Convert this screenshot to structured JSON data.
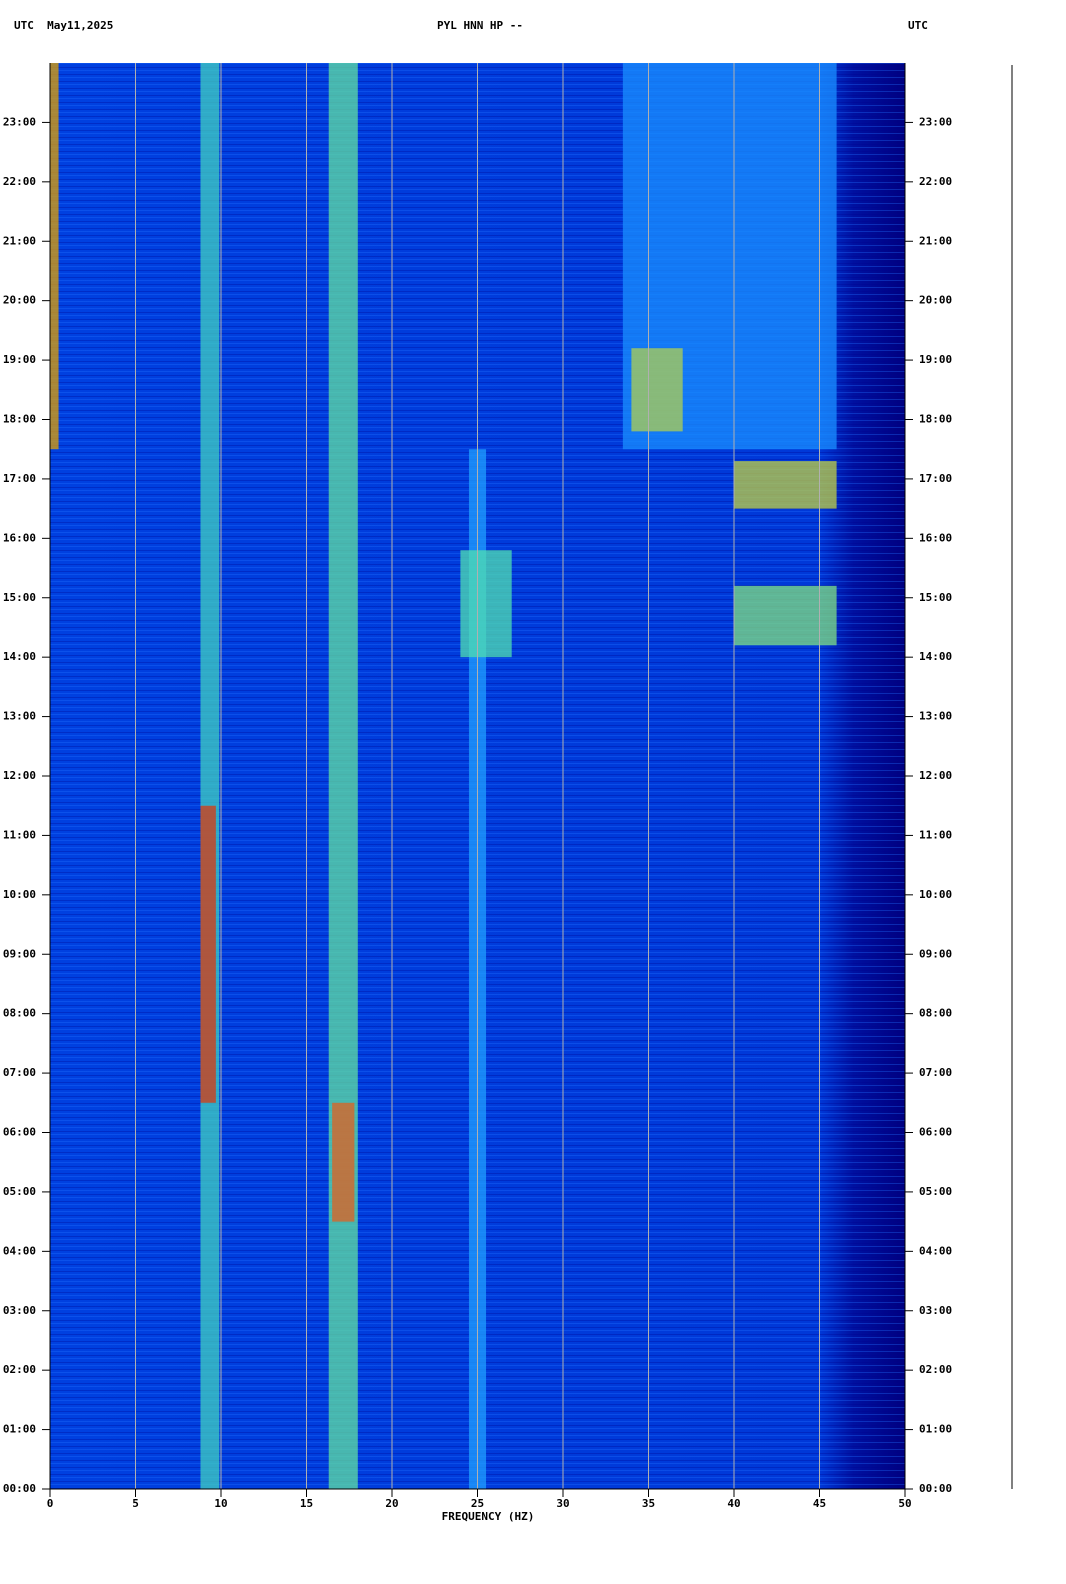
{
  "chart_data": {
    "type": "spectrogram",
    "title_left": "UTC  May11,2025",
    "title": "PYL HNN HP --",
    "title_right": "UTC",
    "xlabel": "FREQUENCY (HZ)",
    "xlim": [
      0,
      50
    ],
    "xticks": [
      0,
      5,
      10,
      15,
      20,
      25,
      30,
      35,
      40,
      45,
      50
    ],
    "ylim": [
      0,
      24
    ],
    "yticks": [
      {
        "value": 0,
        "label": "00:00"
      },
      {
        "value": 1,
        "label": "01:00"
      },
      {
        "value": 2,
        "label": "02:00"
      },
      {
        "value": 3,
        "label": "03:00"
      },
      {
        "value": 4,
        "label": "04:00"
      },
      {
        "value": 5,
        "label": "05:00"
      },
      {
        "value": 6,
        "label": "06:00"
      },
      {
        "value": 7,
        "label": "07:00"
      },
      {
        "value": 8,
        "label": "08:00"
      },
      {
        "value": 9,
        "label": "09:00"
      },
      {
        "value": 10,
        "label": "10:00"
      },
      {
        "value": 11,
        "label": "11:00"
      },
      {
        "value": 12,
        "label": "12:00"
      },
      {
        "value": 13,
        "label": "13:00"
      },
      {
        "value": 14,
        "label": "14:00"
      },
      {
        "value": 15,
        "label": "15:00"
      },
      {
        "value": 16,
        "label": "16:00"
      },
      {
        "value": 17,
        "label": "17:00"
      },
      {
        "value": 18,
        "label": "18:00"
      },
      {
        "value": 19,
        "label": "19:00"
      },
      {
        "value": 20,
        "label": "20:00"
      },
      {
        "value": 21,
        "label": "21:00"
      },
      {
        "value": 22,
        "label": "22:00"
      },
      {
        "value": 23,
        "label": "23:00"
      }
    ],
    "grid": true,
    "bands": [
      {
        "x": [
          33.5,
          46
        ],
        "y": [
          17.5,
          24
        ],
        "color": "#1a8fff"
      },
      {
        "x": [
          0,
          0.5
        ],
        "y": [
          17.5,
          24
        ],
        "color": "#e0a000"
      },
      {
        "x": [
          24.5,
          25.5
        ],
        "y": [
          0,
          17.5
        ],
        "color": "#20a0ff"
      },
      {
        "x": [
          8.8,
          9.9
        ],
        "y": [
          0,
          24
        ],
        "color": "#40d0c0"
      },
      {
        "x": [
          8.8,
          9.7
        ],
        "y": [
          6.5,
          11.5
        ],
        "color": "#d83a10"
      },
      {
        "x": [
          16.3,
          18
        ],
        "y": [
          0,
          24
        ],
        "color": "#60e0a0"
      },
      {
        "x": [
          16.5,
          17.8
        ],
        "y": [
          4.5,
          6.5
        ],
        "color": "#e06020"
      },
      {
        "x": [
          24,
          27
        ],
        "y": [
          14,
          15.8
        ],
        "color": "#50e0b0"
      },
      {
        "x": [
          40,
          46
        ],
        "y": [
          14.2,
          15.2
        ],
        "color": "#80e080"
      },
      {
        "x": [
          40,
          46
        ],
        "y": [
          16.5,
          17.3
        ],
        "color": "#c0d040"
      },
      {
        "x": [
          34,
          37
        ],
        "y": [
          17.8,
          19.2
        ],
        "color": "#b0d050"
      }
    ]
  }
}
